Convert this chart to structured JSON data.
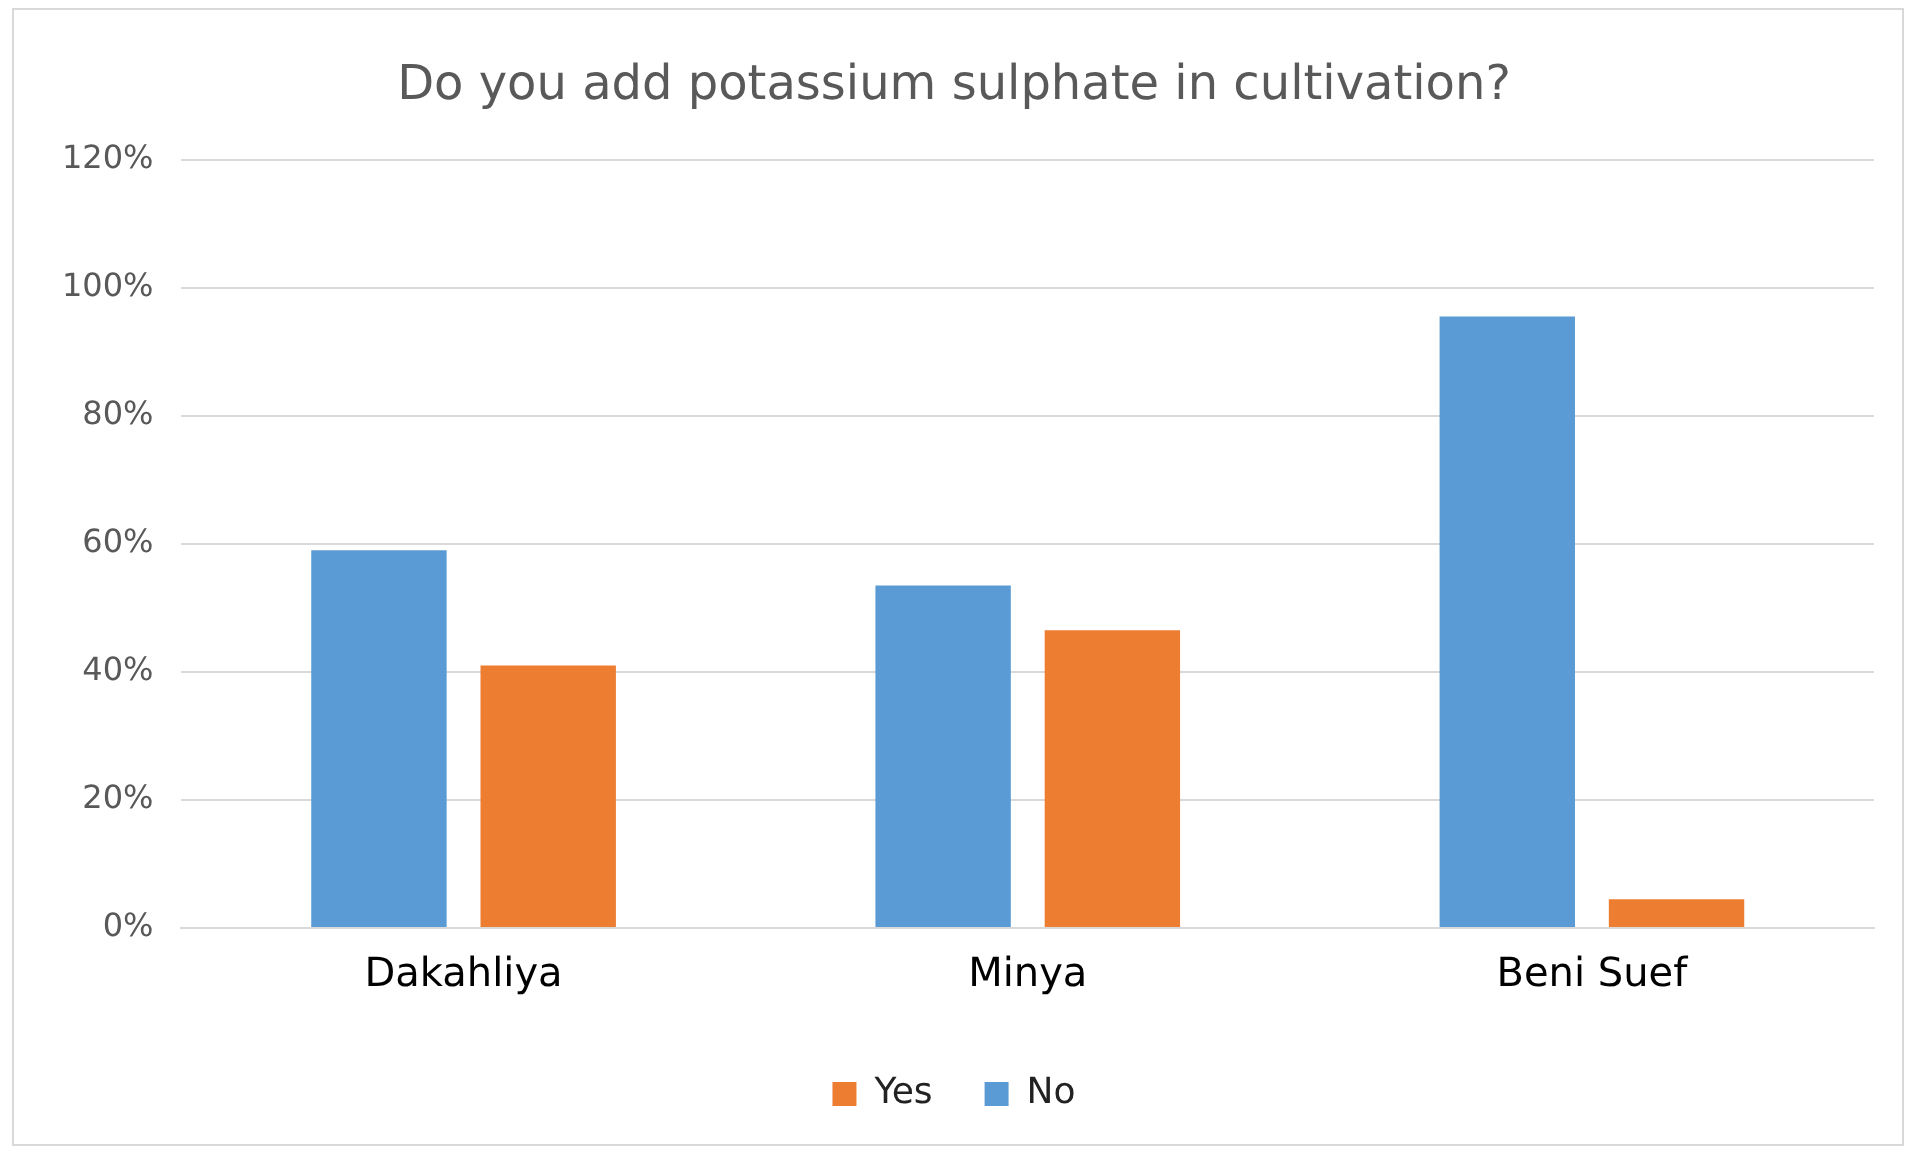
{
  "chart_data": {
    "type": "bar",
    "title": "Do you add potassium sulphate in cultivation?",
    "categories": [
      "Dakahliya",
      "Minya",
      "Beni Suef"
    ],
    "series": [
      {
        "name": "No",
        "color": "#5b9bd5",
        "values": [
          59,
          53.5,
          95.5
        ]
      },
      {
        "name": "Yes",
        "color": "#ed7d31",
        "values": [
          41,
          46.5,
          4.5
        ]
      }
    ],
    "ylim": [
      0,
      120
    ],
    "yticks": [
      {
        "value": 0,
        "label": "0%"
      },
      {
        "value": 20,
        "label": "20%"
      },
      {
        "value": 40,
        "label": "40%"
      },
      {
        "value": 60,
        "label": "60%"
      },
      {
        "value": 80,
        "label": "80%"
      },
      {
        "value": 100,
        "label": "100%"
      },
      {
        "value": 120,
        "label": "120%"
      }
    ],
    "grid": "y",
    "legend": "bottom"
  }
}
